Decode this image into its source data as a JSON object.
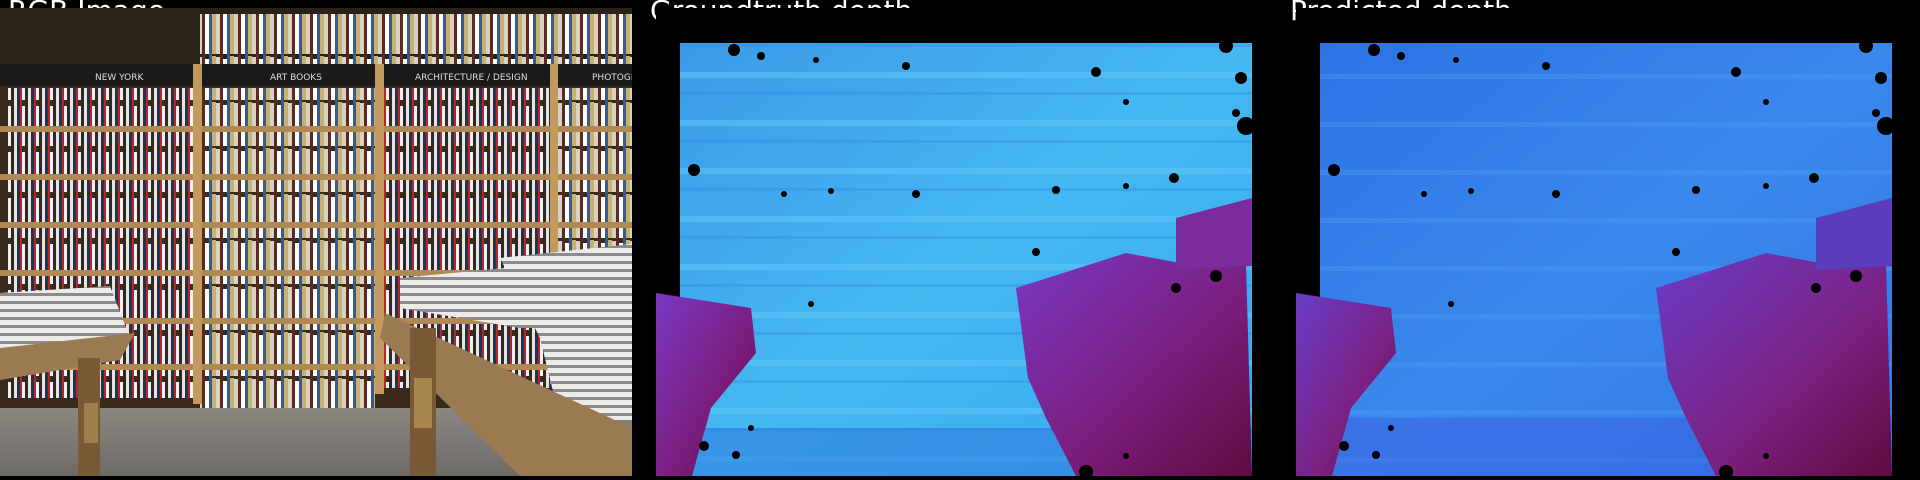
{
  "labels": {
    "rgb": "RGB Image",
    "groundtruth": "Groundtruth depth",
    "predicted": "Predicted depth"
  },
  "colors": {
    "background": "#000000",
    "label_text": "#ffffff",
    "depth_near": "#6a1045",
    "depth_mid": "#6a3cc8",
    "depth_far_gt": "#3fb2f0",
    "depth_far_pred": "#3a7ce8",
    "shelf_wood": "#b08a52",
    "table_wood": "#8a6a44"
  },
  "scene": {
    "sign_texts": [
      "NEW YORK",
      "ART BOOKS",
      "ARCHITECTURE / DESIGN",
      "PHOTOGR"
    ]
  }
}
